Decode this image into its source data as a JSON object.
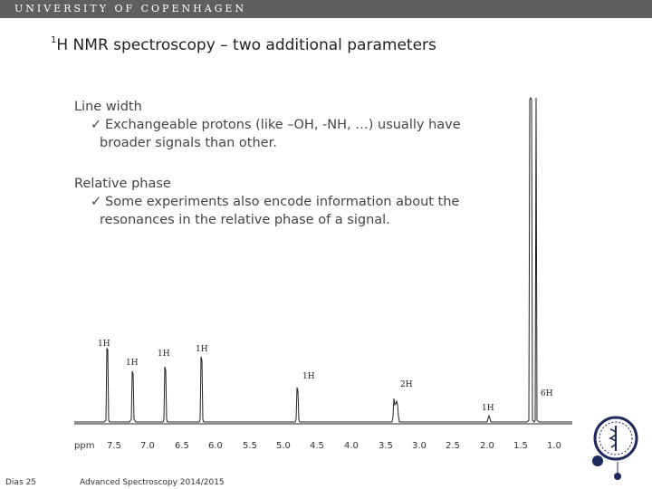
{
  "header": {
    "university": "UNIVERSITY OF COPENHAGEN"
  },
  "title": {
    "superscript": "1",
    "text": "H NMR spectroscopy – two additional parameters"
  },
  "bullets": [
    {
      "heading": "Line width",
      "sub": [
        "Exchangeable protons (like –OH, -NH, …) usually have",
        "broader signals than other."
      ]
    },
    {
      "heading": "Relative phase",
      "sub": [
        "Some experiments also encode information about the",
        "resonances in the relative phase of a signal."
      ]
    }
  ],
  "spectrum": {
    "axis_unit": "ppm",
    "ticks": [
      "7.5",
      "7.0",
      "6.5",
      "6.0",
      "5.5",
      "5.0",
      "4.5",
      "4.0",
      "3.5",
      "3.0",
      "2.5",
      "2.0",
      "1.5",
      "1.0"
    ],
    "peak_labels": [
      "1H",
      "1H",
      "1H",
      "1H",
      "1H",
      "2H",
      "1H",
      "6H"
    ]
  },
  "footer": {
    "slide_number": "Dias 25",
    "course": "Advanced Spectroscopy 2014/2015"
  },
  "colors": {
    "topbar": "#5f5f5f",
    "logo": "#1f2a5c",
    "spectrum_line": "#222222"
  }
}
